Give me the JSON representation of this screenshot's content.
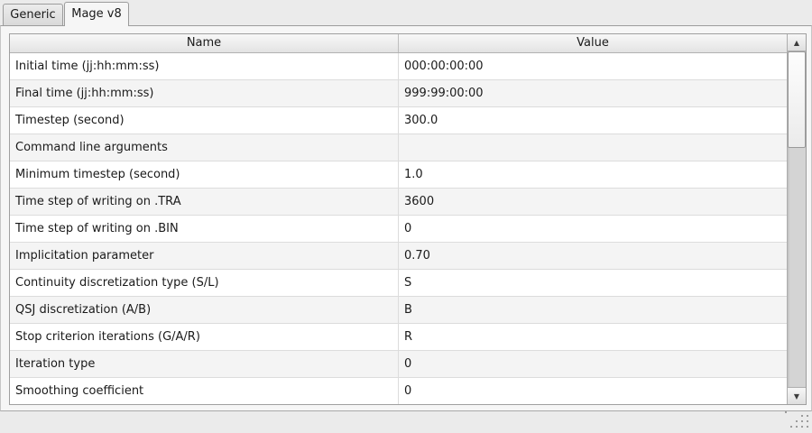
{
  "tabs": [
    {
      "label": "Generic",
      "active": false
    },
    {
      "label": "Mage v8",
      "active": true
    }
  ],
  "table": {
    "columns": [
      "Name",
      "Value"
    ],
    "rows": [
      {
        "name": "Initial time (jj:hh:mm:ss)",
        "value": "000:00:00:00"
      },
      {
        "name": "Final time (jj:hh:mm:ss)",
        "value": "999:99:00:00"
      },
      {
        "name": "Timestep (second)",
        "value": "300.0"
      },
      {
        "name": "Command line arguments",
        "value": ""
      },
      {
        "name": "Minimum timestep (second)",
        "value": "1.0"
      },
      {
        "name": "Time step of writing on .TRA",
        "value": "3600"
      },
      {
        "name": "Time step of writing on .BIN",
        "value": "0"
      },
      {
        "name": "Implicitation parameter",
        "value": "0.70"
      },
      {
        "name": "Continuity discretization type (S/L)",
        "value": "S"
      },
      {
        "name": "QSJ discretization (A/B)",
        "value": "B"
      },
      {
        "name": "Stop criterion iterations (G/A/R)",
        "value": "R"
      },
      {
        "name": "Iteration type",
        "value": "0"
      },
      {
        "name": "Smoothing coefficient",
        "value": "0"
      }
    ]
  },
  "scrollbar": {
    "up_icon": "▲",
    "down_icon": "▼"
  },
  "colors": {
    "window_bg": "#ebebeb",
    "panel_bg": "#f6f6f6",
    "row_bg": "#ffffff",
    "row_alt_bg": "#f4f4f4",
    "row_border": "#dcdcdc",
    "frame_border": "#9f9f9f",
    "header_gradient_top": "#f8f8f8",
    "header_gradient_bottom": "#e3e3e3",
    "scroll_track": "#d4d4d4",
    "text": "#1a1a1a"
  }
}
